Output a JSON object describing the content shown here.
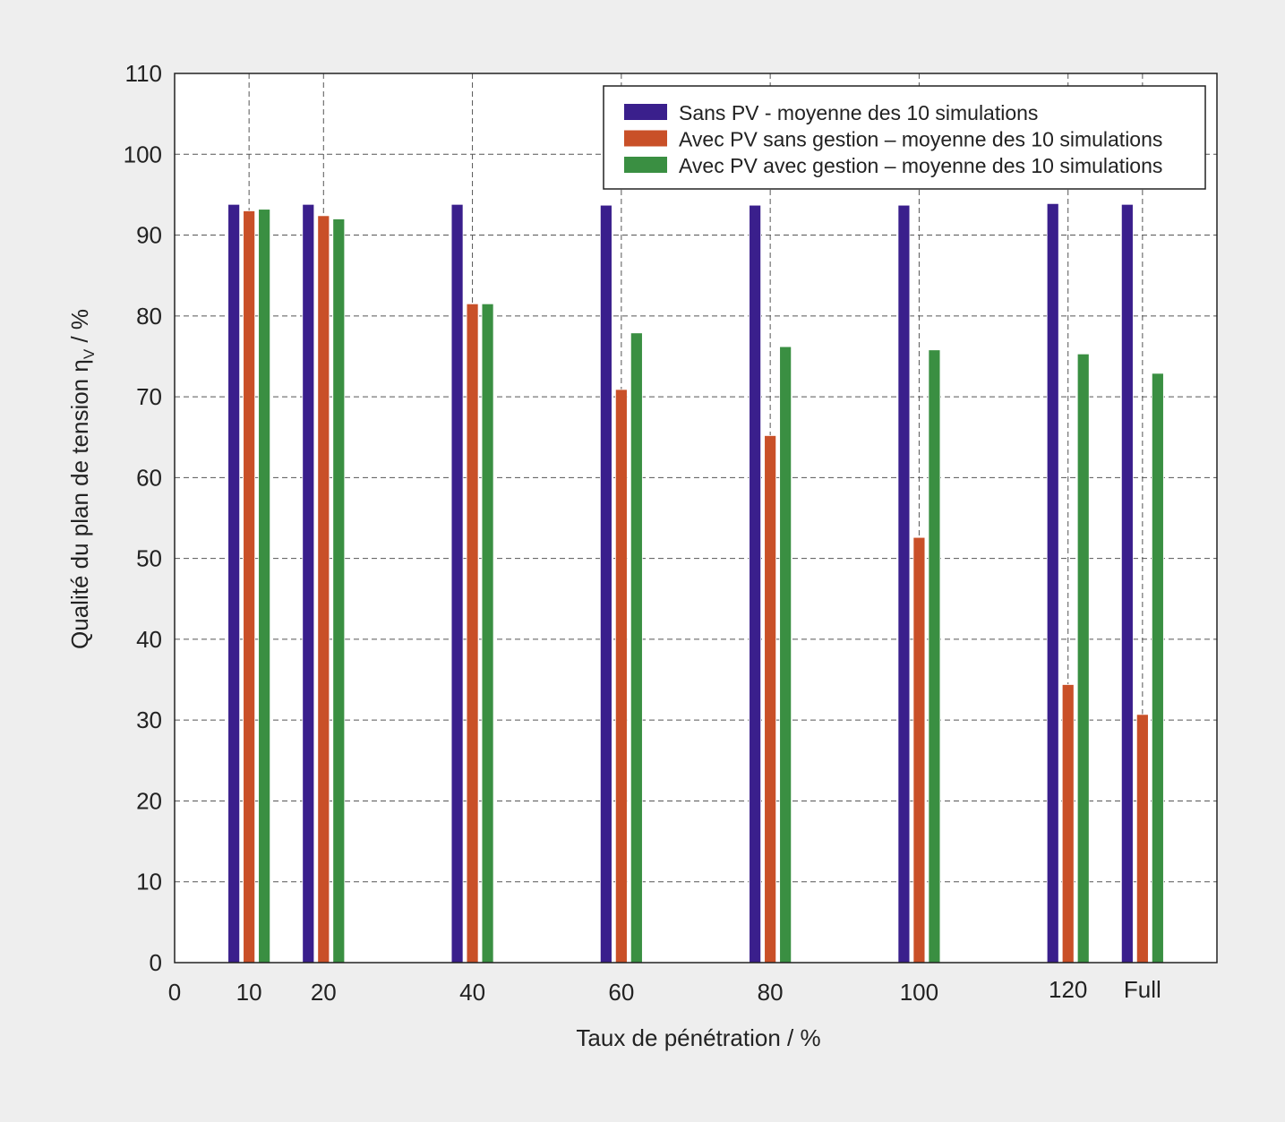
{
  "chart_data": {
    "type": "bar",
    "title": "",
    "xlabel": "Taux de pénétration / %",
    "ylabel": "Qualité du plan de tension ηV / %",
    "ylabel_main": "Qualité du plan de tension η",
    "ylabel_sub": "V",
    "ylabel_tail": " / %",
    "ylim": [
      0,
      110
    ],
    "xlim": [
      0,
      140
    ],
    "yticks": [
      0,
      10,
      20,
      30,
      40,
      50,
      60,
      70,
      80,
      90,
      100,
      110
    ],
    "x_tick_labels": [
      {
        "x": 0,
        "label": "0"
      },
      {
        "x": 10,
        "label": "10"
      },
      {
        "x": 20,
        "label": "20"
      },
      {
        "x": 40,
        "label": "40"
      },
      {
        "x": 60,
        "label": "60"
      },
      {
        "x": 80,
        "label": "80"
      },
      {
        "x": 100,
        "label": "100"
      },
      {
        "x": 120,
        "label": "120"
      },
      {
        "x": 130,
        "label": "Full"
      }
    ],
    "categories": [
      "10",
      "20",
      "40",
      "60",
      "80",
      "100",
      "120",
      "Full"
    ],
    "x": [
      10,
      20,
      40,
      60,
      80,
      100,
      120,
      130
    ],
    "series": [
      {
        "name": "Sans PV - moyenne des 10 simulations",
        "color": "#3a1f8c",
        "values": [
          93.8,
          93.8,
          93.8,
          93.7,
          93.7,
          93.7,
          93.9,
          93.8
        ]
      },
      {
        "name": "Avec PV sans gestion – moyenne des 10 simulations",
        "color": "#c95028",
        "values": [
          93.0,
          92.4,
          81.5,
          70.9,
          65.2,
          52.6,
          34.4,
          30.7
        ]
      },
      {
        "name": "Avec PV avec gestion – moyenne des 10 simulations",
        "color": "#3a8f42",
        "values": [
          93.2,
          92.0,
          81.5,
          77.9,
          76.2,
          75.8,
          75.3,
          72.9
        ]
      }
    ],
    "grid": true,
    "legend_position": "top-right"
  }
}
